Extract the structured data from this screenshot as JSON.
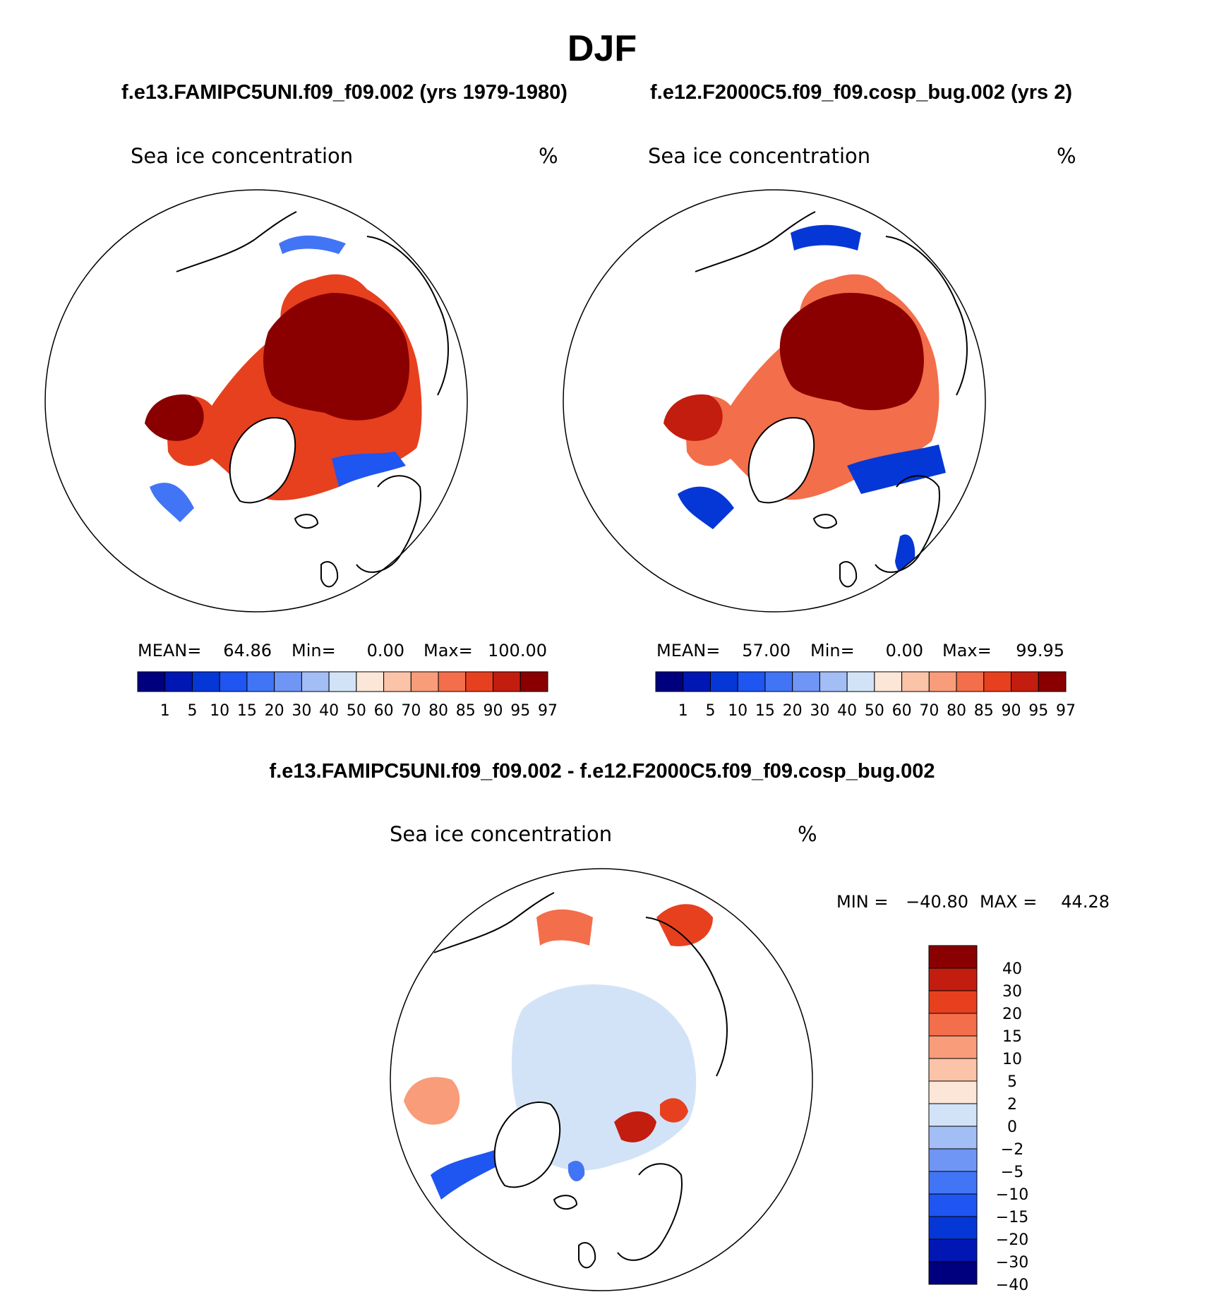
{
  "season_title": "DJF",
  "chart_data": [
    {
      "type": "heatmap",
      "projection": "north polar stereographic",
      "case_title": "f.e13.FAMIPC5UNI.f09_f09.002 (yrs 1979-1980)",
      "variable": "Sea ice concentration",
      "units": "%",
      "stats": {
        "mean_label": "MEAN=",
        "mean": "64.86",
        "min_label": "Min=",
        "min": "0.00",
        "max_label": "Max=",
        "max": "100.00"
      },
      "levels": [
        "1",
        "5",
        "10",
        "15",
        "20",
        "30",
        "40",
        "50",
        "60",
        "70",
        "80",
        "85",
        "90",
        "95",
        "97"
      ],
      "colors": [
        "#00007f",
        "#0017b3",
        "#0537d6",
        "#1f55f0",
        "#4275f5",
        "#7096f5",
        "#a3bdf5",
        "#d3e3f7",
        "#fbe6d7",
        "#fbc3a8",
        "#f89c7a",
        "#f36e4a",
        "#e7401f",
        "#c21d0f",
        "#8a0000"
      ]
    },
    {
      "type": "heatmap",
      "projection": "north polar stereographic",
      "case_title": "f.e12.F2000C5.f09_f09.cosp_bug.002 (yrs 2)",
      "variable": "Sea ice concentration",
      "units": "%",
      "stats": {
        "mean_label": "MEAN=",
        "mean": "57.00",
        "min_label": "Min=",
        "min": "0.00",
        "max_label": "Max=",
        "max": "99.95"
      },
      "levels": [
        "1",
        "5",
        "10",
        "15",
        "20",
        "30",
        "40",
        "50",
        "60",
        "70",
        "80",
        "85",
        "90",
        "95",
        "97"
      ],
      "colors": [
        "#00007f",
        "#0017b3",
        "#0537d6",
        "#1f55f0",
        "#4275f5",
        "#7096f5",
        "#a3bdf5",
        "#d3e3f7",
        "#fbe6d7",
        "#fbc3a8",
        "#f89c7a",
        "#f36e4a",
        "#e7401f",
        "#c21d0f",
        "#8a0000"
      ]
    },
    {
      "type": "heatmap",
      "projection": "north polar stereographic",
      "case_title": "f.e13.FAMIPC5UNI.f09_f09.002 - f.e12.F2000C5.f09_f09.cosp_bug.002",
      "variable": "Sea ice concentration",
      "units": "%",
      "stats": {
        "min_label": "MIN =",
        "min": "−40.80",
        "max_label": "MAX =",
        "max": "44.28"
      },
      "levels": [
        "40",
        "30",
        "20",
        "15",
        "10",
        "5",
        "2",
        "0",
        "−2",
        "−5",
        "−10",
        "−15",
        "−20",
        "−30",
        "−40"
      ],
      "colors": [
        "#8a0000",
        "#c21d0f",
        "#e7401f",
        "#f36e4a",
        "#f89c7a",
        "#fbc3a8",
        "#fbe6d7",
        "#d3e3f7",
        "#a3bdf5",
        "#7096f5",
        "#4275f5",
        "#1f55f0",
        "#0537d6",
        "#0017b3",
        "#00007f"
      ]
    }
  ]
}
